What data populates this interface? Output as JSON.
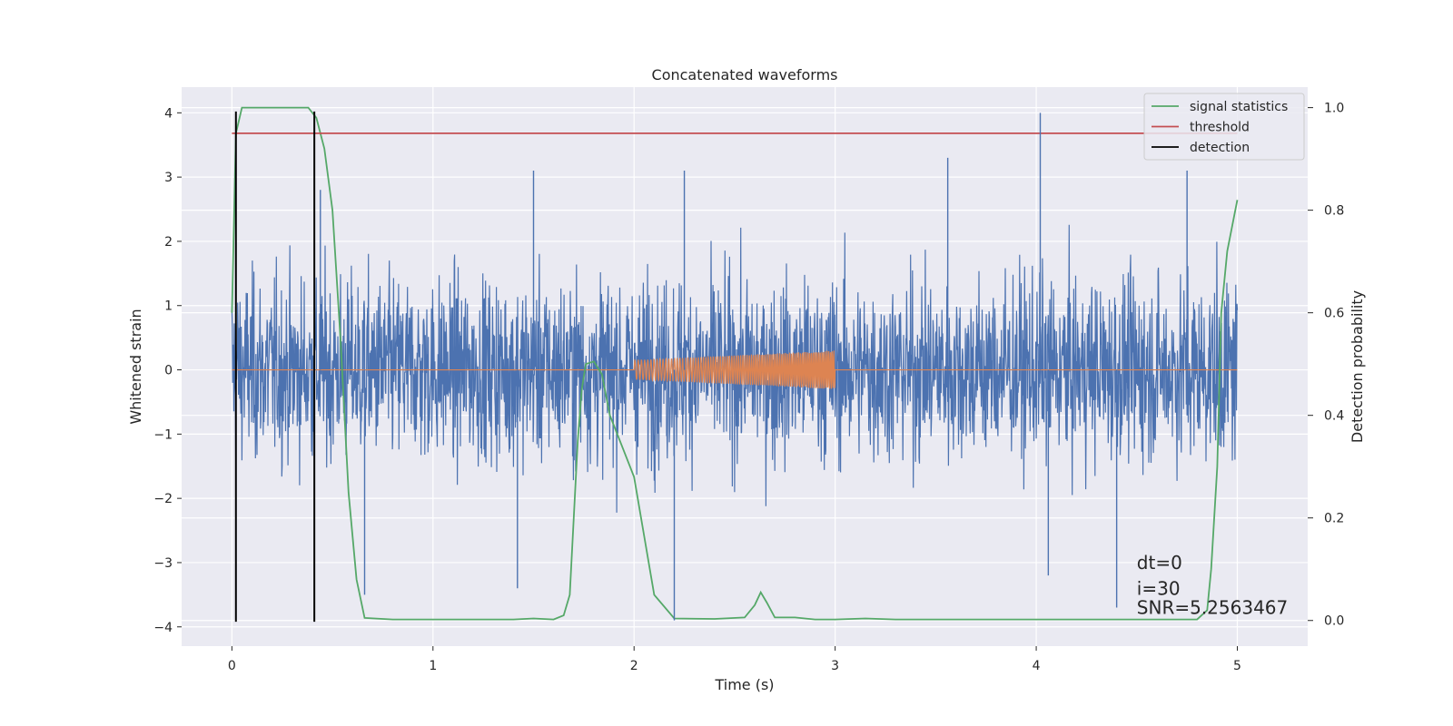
{
  "chart_data": {
    "type": "line",
    "title": "Concatenated waveforms",
    "xlabel": "Time (s)",
    "ylabel": "Whitened strain",
    "y2label": "Detection probability",
    "xlim": [
      -0.25,
      5.35
    ],
    "ylim": [
      -4.3,
      4.4
    ],
    "y2lim": [
      -0.05,
      1.04
    ],
    "xticks": [
      0,
      1,
      2,
      3,
      4,
      5
    ],
    "yticks": [
      4,
      3,
      2,
      1,
      0,
      -1,
      -2,
      -3,
      -4
    ],
    "y2ticks": [
      1.0,
      0.8,
      0.6,
      0.4,
      0.2,
      0.0
    ],
    "xtick_labels": [
      "0",
      "1",
      "2",
      "3",
      "4",
      "5"
    ],
    "ytick_labels": [
      "4",
      "3",
      "2",
      "1",
      "0",
      "−1",
      "−2",
      "−3",
      "−4"
    ],
    "y2tick_labels": [
      "1.0",
      "0.8",
      "0.6",
      "0.4",
      "0.2",
      "0.0"
    ],
    "grid": true,
    "legend_position": "top-right",
    "legend": [
      {
        "label": "signal statistics",
        "color": "#55a868"
      },
      {
        "label": "threshold",
        "color": "#c44e52"
      },
      {
        "label": "detection",
        "color": "#000000"
      }
    ],
    "strain_noise": {
      "color": "#4c72b0",
      "x_range": [
        0,
        5
      ],
      "typical_amplitude": 1.6,
      "envelope_max": 3.2,
      "spikes": [
        {
          "x": 0.44,
          "y": 2.8
        },
        {
          "x": 0.66,
          "y": -3.5
        },
        {
          "x": 1.42,
          "y": -3.4
        },
        {
          "x": 1.5,
          "y": 3.1
        },
        {
          "x": 2.2,
          "y": -3.9
        },
        {
          "x": 2.25,
          "y": 3.1
        },
        {
          "x": 3.56,
          "y": 3.3
        },
        {
          "x": 4.02,
          "y": 4.0
        },
        {
          "x": 4.06,
          "y": -3.2
        },
        {
          "x": 4.4,
          "y": -3.7
        },
        {
          "x": 4.75,
          "y": 3.1
        }
      ]
    },
    "injected_signal": {
      "color": "#dd8452",
      "x_range": [
        2,
        3
      ],
      "amplitude_start": 0.15,
      "amplitude_end": 0.3,
      "baseline": 0
    },
    "series": [
      {
        "name": "signal statistics",
        "color": "#55a868",
        "axis": "y2",
        "x": [
          0.0,
          0.02,
          0.05,
          0.1,
          0.38,
          0.42,
          0.46,
          0.5,
          0.54,
          0.58,
          0.62,
          0.66,
          0.8,
          1.0,
          1.2,
          1.4,
          1.5,
          1.6,
          1.65,
          1.68,
          1.7,
          1.72,
          1.74,
          1.76,
          1.8,
          1.84,
          1.88,
          1.93,
          2.0,
          2.1,
          2.2,
          2.4,
          2.55,
          2.6,
          2.63,
          2.66,
          2.7,
          2.8,
          2.9,
          3.0,
          3.15,
          3.3,
          3.5,
          4.0,
          4.5,
          4.8,
          4.85,
          4.87,
          4.9,
          4.92,
          4.95,
          5.0
        ],
        "y": [
          0.6,
          0.95,
          1.0,
          1.0,
          1.0,
          0.98,
          0.92,
          0.8,
          0.55,
          0.25,
          0.08,
          0.005,
          0.002,
          0.002,
          0.002,
          0.002,
          0.004,
          0.002,
          0.01,
          0.05,
          0.2,
          0.35,
          0.45,
          0.5,
          0.505,
          0.48,
          0.4,
          0.35,
          0.28,
          0.05,
          0.004,
          0.003,
          0.006,
          0.03,
          0.055,
          0.035,
          0.006,
          0.006,
          0.002,
          0.002,
          0.004,
          0.002,
          0.002,
          0.002,
          0.002,
          0.002,
          0.02,
          0.1,
          0.3,
          0.6,
          0.72,
          0.82
        ]
      },
      {
        "name": "threshold",
        "color": "#c44e52",
        "axis": "y2",
        "x": [
          0,
          5
        ],
        "y": [
          0.95,
          0.95
        ]
      }
    ],
    "detections": {
      "color": "#000000",
      "x": [
        0.02,
        0.41
      ],
      "y_range": [
        -3.92,
        4.02
      ]
    },
    "annotations": [
      {
        "text": "dt=0",
        "x": 4.5,
        "y": -3.1
      },
      {
        "text": "i=30",
        "x": 4.5,
        "y": -3.5
      },
      {
        "text": "SNR=5.2563467",
        "x": 4.5,
        "y": -3.8
      }
    ]
  }
}
